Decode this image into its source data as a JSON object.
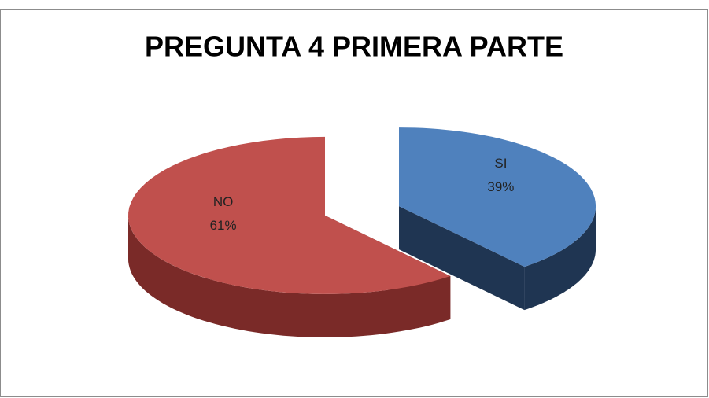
{
  "chart_data": {
    "type": "pie",
    "title": "PREGUNTA 4 PRIMERA PARTE",
    "categories": [
      "SI",
      "NO"
    ],
    "values": [
      39,
      61
    ],
    "value_labels": [
      "39%",
      "61%"
    ],
    "colors": [
      "#4f81bd",
      "#c0504d"
    ],
    "side_colors": [
      "#1f3552",
      "#7a2a28"
    ]
  }
}
